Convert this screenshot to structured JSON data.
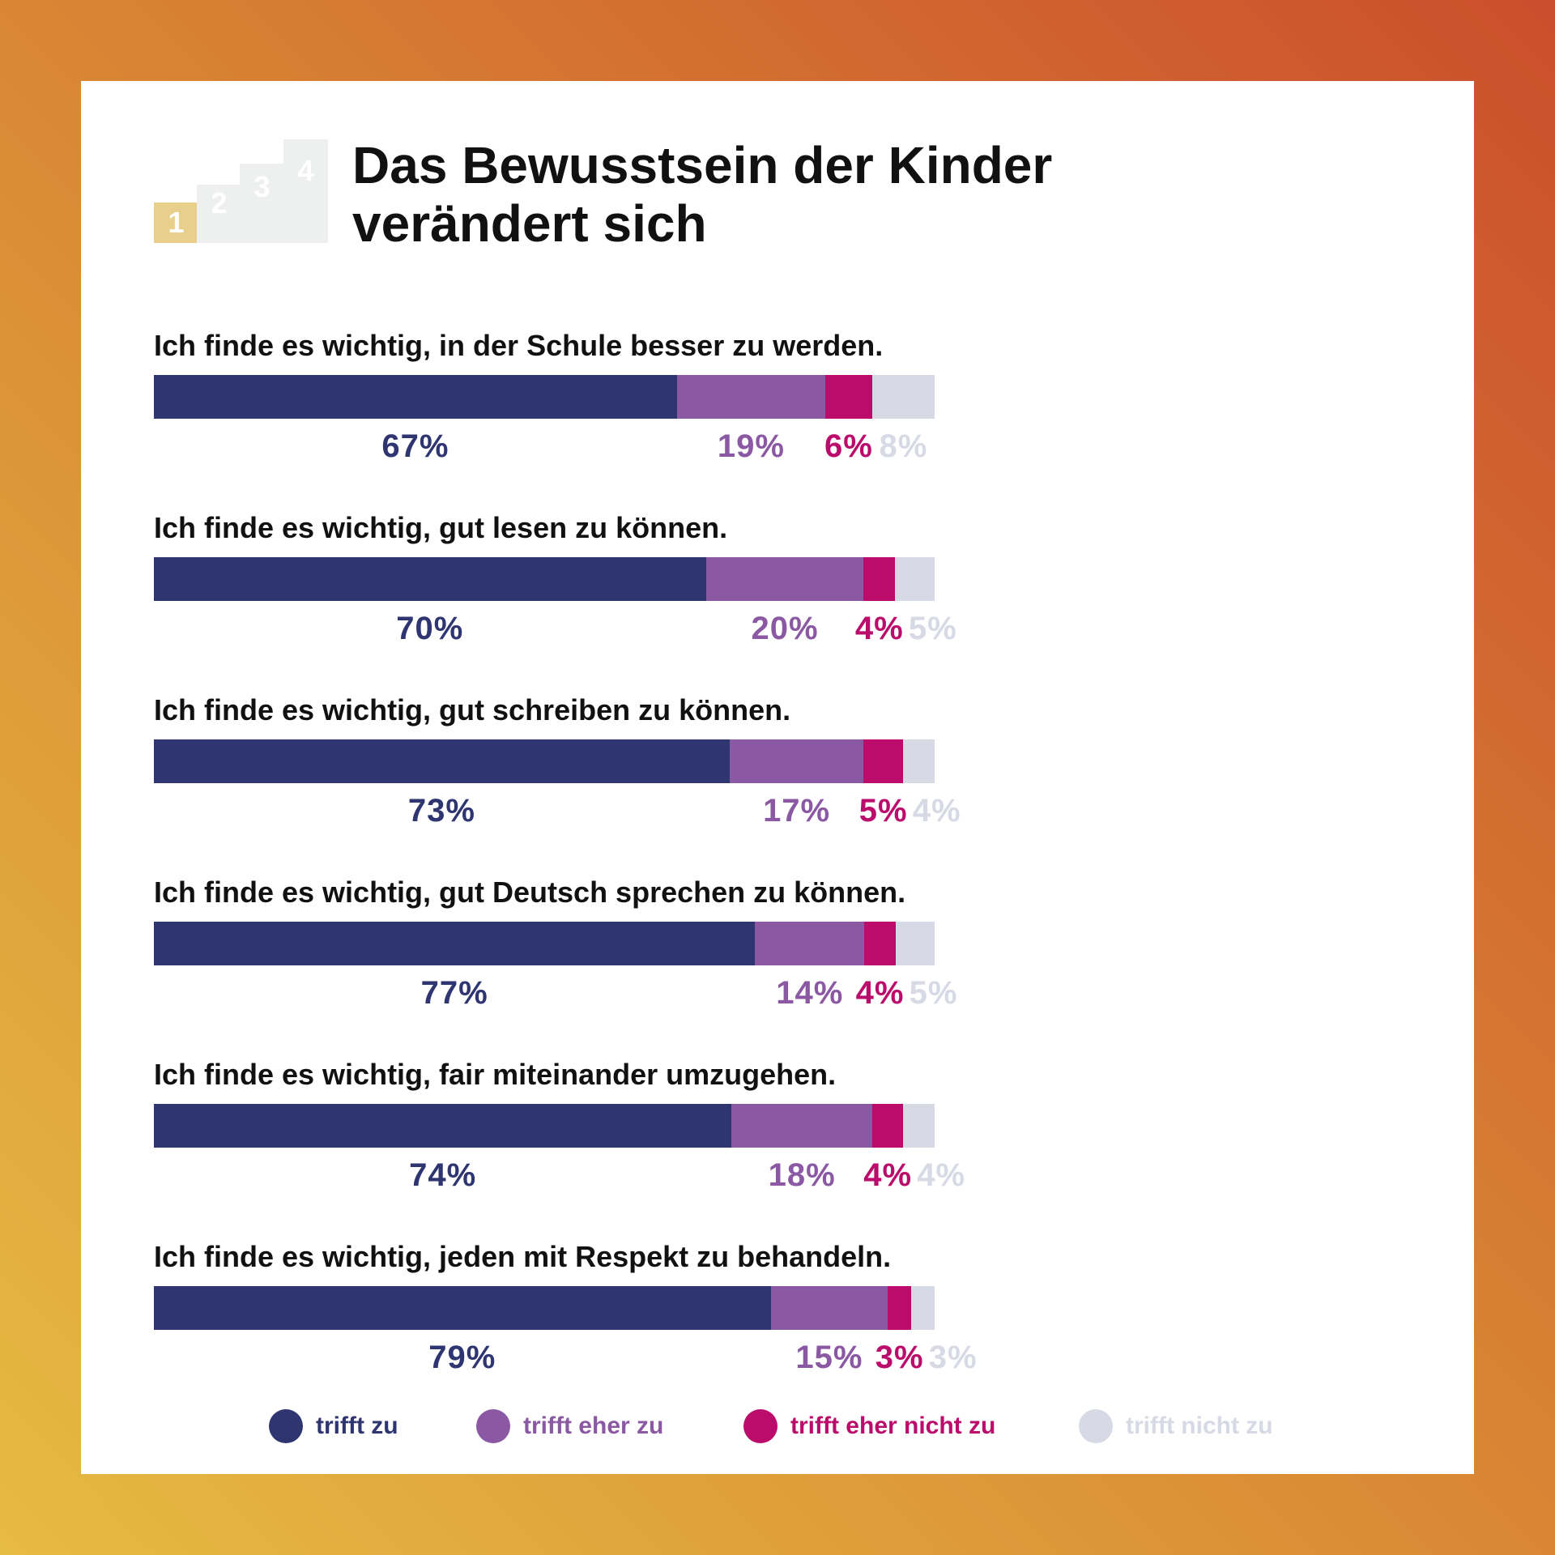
{
  "title": "Das Bewusstsein der Kinder verändert sich",
  "icon": {
    "name": "podium-icon",
    "steps": [
      "1",
      "2",
      "3",
      "4"
    ],
    "colors": [
      "#e8cf8b",
      "#eef0f0"
    ]
  },
  "colors": {
    "trifft_zu": "#2e3570",
    "trifft_eher_zu": "#8b58a3",
    "trifft_eher_nicht_zu": "#bb0c6c",
    "trifft_nicht_zu": "#d7dae5"
  },
  "chart_data": {
    "type": "bar",
    "orientation": "horizontal",
    "stacked": true,
    "unit": "%",
    "categories": [
      "Ich finde es wichtig, in der Schule besser zu werden.",
      "Ich finde es wichtig, gut lesen zu können.",
      "Ich finde es wichtig, gut schreiben zu können.",
      "Ich finde es wichtig, gut Deutsch sprechen zu können.",
      "Ich finde es wichtig, fair miteinander umzugehen.",
      "Ich finde es wichtig, jeden mit Respekt zu behandeln."
    ],
    "series": [
      {
        "name": "trifft zu",
        "color": "#2e3570",
        "values": [
          67,
          70,
          73,
          77,
          74,
          79
        ],
        "labels": [
          "67%",
          "70%",
          "73%",
          "77%",
          "74%",
          "79%"
        ]
      },
      {
        "name": "trifft eher zu",
        "color": "#8b58a3",
        "values": [
          19,
          20,
          17,
          14,
          18,
          15
        ],
        "labels": [
          "19%",
          "20%",
          "17%",
          "14%",
          "18%",
          "15%"
        ]
      },
      {
        "name": "trifft eher nicht zu",
        "color": "#bb0c6c",
        "values": [
          6,
          4,
          5,
          4,
          4,
          3
        ],
        "labels": [
          "6%",
          "4%",
          "5%",
          "4%",
          "4%",
          "3%"
        ]
      },
      {
        "name": "trifft nicht zu",
        "color": "#d7dae5",
        "values": [
          8,
          5,
          4,
          5,
          4,
          3
        ],
        "labels": [
          "8%",
          "5%",
          "4%",
          "5%",
          "4%",
          "3%"
        ]
      }
    ],
    "legend_position": "bottom",
    "grid": false
  }
}
